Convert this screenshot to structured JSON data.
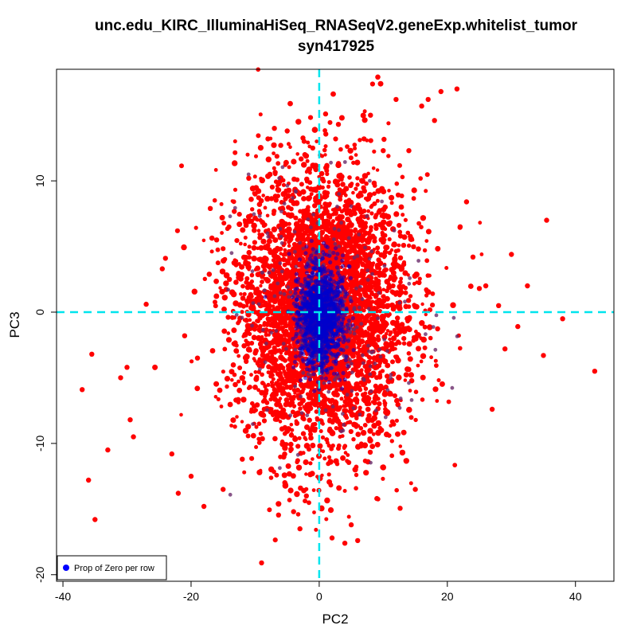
{
  "chart_data": {
    "type": "scatter",
    "title": "unc.edu_KIRC_IlluminaHiSeq_RNASeqV2.geneExp.whitelist_tumor",
    "subtitle": "syn417925",
    "xlabel": "PC2",
    "ylabel": "PC3",
    "xlim": [
      -41,
      46
    ],
    "ylim": [
      -20.5,
      18.5
    ],
    "xticks": [
      -40,
      -20,
      0,
      20,
      40
    ],
    "yticks": [
      -20,
      -10,
      0,
      10
    ],
    "grid": false,
    "legend": {
      "position": "bottom-left",
      "entries": [
        "Prop of Zero per row"
      ]
    },
    "reference_lines": {
      "x": 0,
      "y": 0,
      "color": "#00e5ee",
      "style": "dashed"
    },
    "colors": {
      "low": "#ff0000",
      "high": "#0000cc"
    },
    "color_scale": "red (low proportion of zeros) to blue (high proportion of zeros)",
    "series": [
      {
        "name": "Prop of Zero per row",
        "points": [
          [
            -37,
            -5.9
          ],
          [
            -36,
            -12.8
          ],
          [
            -35.5,
            -3.2
          ],
          [
            -35,
            -15.8
          ],
          [
            -33,
            -10.5
          ],
          [
            -31,
            -5
          ],
          [
            -30,
            -4.2
          ],
          [
            -29.5,
            -8.2
          ],
          [
            -29,
            -9.5
          ],
          [
            -27,
            0.6
          ],
          [
            -24,
            4.1
          ],
          [
            -24.5,
            3.3
          ],
          [
            -23,
            -10.8
          ],
          [
            -22,
            -13.8
          ],
          [
            -21,
            -1.8
          ],
          [
            -20,
            -12.5
          ],
          [
            -19,
            -3.5
          ],
          [
            -18,
            -14.8
          ],
          [
            -17,
            7.9
          ],
          [
            -16,
            5.5
          ],
          [
            -15,
            -13.5
          ],
          [
            -14,
            2.5
          ],
          [
            -13,
            -6.7
          ],
          [
            -12,
            -11.2
          ],
          [
            -11,
            10.2
          ],
          [
            -10,
            9
          ],
          [
            -9,
            -19.1
          ],
          [
            -8,
            13.2
          ],
          [
            -7,
            14
          ],
          [
            -6,
            12.7
          ],
          [
            -5,
            13.8
          ],
          [
            -4,
            -15.2
          ],
          [
            -3,
            -16.5
          ],
          [
            -2,
            -14
          ],
          [
            -1,
            12.5
          ],
          [
            1,
            15.1
          ],
          [
            2,
            -17.2
          ],
          [
            3,
            14.3
          ],
          [
            4,
            -17.6
          ],
          [
            5,
            -16.2
          ],
          [
            6,
            -17.4
          ],
          [
            7,
            13.2
          ],
          [
            8,
            15
          ],
          [
            9,
            -14.2
          ],
          [
            10,
            12.3
          ],
          [
            12,
            16.2
          ],
          [
            14,
            12.3
          ],
          [
            15,
            -13.5
          ],
          [
            16,
            15.7
          ],
          [
            17,
            16.2
          ],
          [
            18,
            14.6
          ],
          [
            19,
            16.8
          ],
          [
            21.5,
            17
          ],
          [
            22,
            6.5
          ],
          [
            23,
            8.4
          ],
          [
            24,
            4.2
          ],
          [
            25,
            1.8
          ],
          [
            26,
            2
          ],
          [
            27,
            -7.4
          ],
          [
            28,
            0.5
          ],
          [
            29,
            -2.8
          ],
          [
            30,
            4.4
          ],
          [
            31,
            -1.1
          ],
          [
            32.5,
            2
          ],
          [
            35,
            -3.3
          ],
          [
            35.5,
            7
          ],
          [
            38,
            -0.5
          ],
          [
            43,
            -4.5
          ]
        ],
        "note": "Dense cloud of several thousand points centered near (0,0), spanning roughly x -20..25 and y -17..16; dense blue core within about x -4..6, y -4..4."
      }
    ]
  }
}
